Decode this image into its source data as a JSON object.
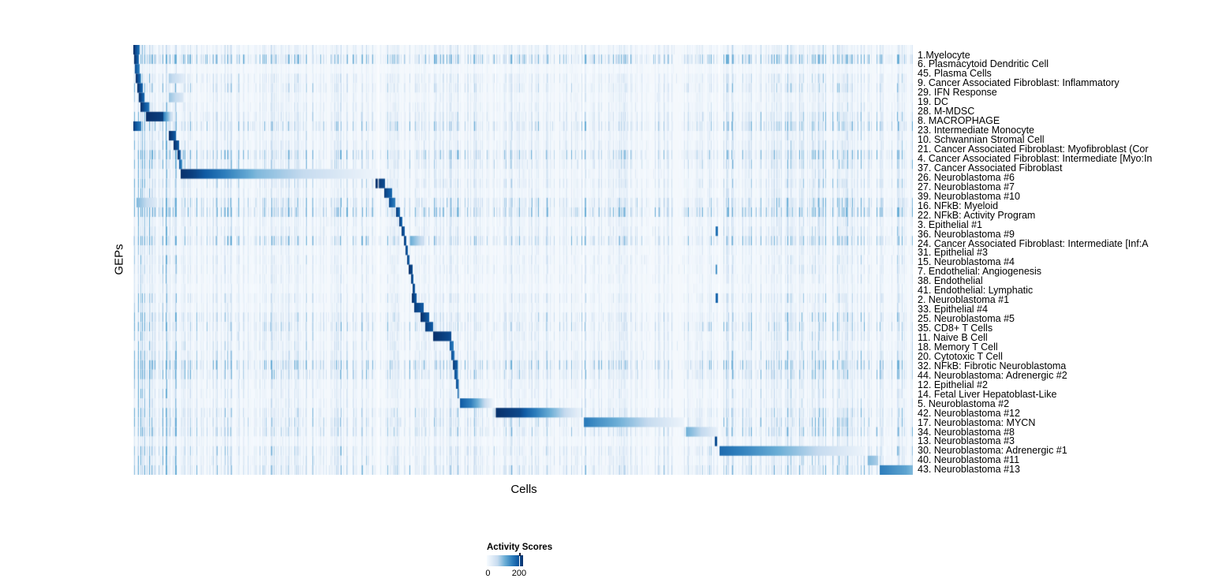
{
  "page": {
    "background": "#ffffff"
  },
  "chart_data": {
    "type": "heatmap",
    "title": "",
    "xlabel": "Cells",
    "ylabel": "GEPs",
    "legend": {
      "title": "Activity Scores",
      "ticks": [
        {
          "label": "0",
          "pos": 0.03
        },
        {
          "label": "200",
          "pos": 0.89
        }
      ],
      "value_range": [
        0,
        225
      ]
    },
    "colormap": {
      "name": "white-to-dark-blue",
      "stops": [
        [
          0.0,
          "#f7fbff"
        ],
        [
          0.12,
          "#e4eef8"
        ],
        [
          0.3,
          "#c6dbef"
        ],
        [
          0.5,
          "#6baed6"
        ],
        [
          0.7,
          "#2e7ebc"
        ],
        [
          0.85,
          "#105ba4"
        ],
        [
          1.0,
          "#08306b"
        ]
      ]
    },
    "background": "#f4f8fc",
    "column_gaps": [
      0.314,
      0.418,
      0.464,
      0.577,
      0.708,
      0.751,
      0.94,
      0.956
    ],
    "stripe_regions": [
      [
        0.0,
        0.062,
        1.8
      ],
      [
        0.062,
        0.314,
        1.0
      ],
      [
        0.314,
        0.42,
        0.9
      ],
      [
        0.42,
        0.58,
        0.85
      ],
      [
        0.58,
        0.708,
        0.7
      ],
      [
        0.708,
        0.752,
        0.8
      ],
      [
        0.752,
        1.0,
        1.15
      ]
    ],
    "rows": [
      {
        "label": "1.Myelocyte",
        "stripe": 0.3,
        "segments": [
          [
            0.0,
            0.008,
            1.0,
            0.75
          ]
        ]
      },
      {
        "label": "6. Plasmacytoid Dendritic Cell",
        "stripe": 0.85,
        "segments": [
          [
            0.001,
            0.007,
            1.0,
            0.8
          ]
        ]
      },
      {
        "label": "45. Plasma Cells",
        "stripe": 0.15,
        "segments": [
          [
            0.002,
            0.008,
            0.9,
            0.7
          ]
        ]
      },
      {
        "label": "9. Cancer Associated Fibroblast: Inflammatory",
        "stripe": 0.35,
        "segments": [
          [
            0.003,
            0.009,
            1.0,
            0.8
          ],
          [
            0.046,
            0.064,
            0.35,
            0.15
          ]
        ]
      },
      {
        "label": "29. IFN Response",
        "stripe": 0.4,
        "segments": [
          [
            0.005,
            0.012,
            1.0,
            0.8
          ]
        ]
      },
      {
        "label": "19. DC",
        "stripe": 0.25,
        "segments": [
          [
            0.007,
            0.014,
            1.0,
            0.8
          ],
          [
            0.046,
            0.064,
            0.4,
            0.2
          ]
        ]
      },
      {
        "label": "28. M-MDSC",
        "stripe": 0.3,
        "segments": [
          [
            0.009,
            0.02,
            1.0,
            0.75
          ]
        ]
      },
      {
        "label": "8. MACROPHAGE",
        "stripe": 0.4,
        "segments": [
          [
            0.016,
            0.038,
            1.0,
            0.95
          ],
          [
            0.038,
            0.052,
            0.7,
            0.15
          ]
        ]
      },
      {
        "label": "23. Intermediate Monocyte",
        "stripe": 0.6,
        "segments": [
          [
            0.0,
            0.01,
            0.95,
            0.7
          ]
        ]
      },
      {
        "label": "10. Schwannian Stromal Cell",
        "stripe": 0.3,
        "segments": [
          [
            0.0455,
            0.0545,
            1.0,
            0.85
          ]
        ]
      },
      {
        "label": "21. Cancer Associated Fibroblast: Myofibroblast (Cor",
        "stripe": 0.35,
        "segments": [
          [
            0.052,
            0.0585,
            1.0,
            0.85
          ]
        ]
      },
      {
        "label": "4. Cancer Associated Fibroblast: Intermediate [Myo:In",
        "stripe": 0.65,
        "segments": [
          [
            0.0565,
            0.0605,
            1.0,
            0.85
          ]
        ]
      },
      {
        "label": "37. Cancer Associated Fibroblast",
        "stripe": 0.45,
        "segments": [
          [
            0.059,
            0.0625,
            0.85,
            0.6
          ]
        ]
      },
      {
        "label": "26. Neuroblastoma #6",
        "stripe": 0.3,
        "segments": [
          [
            0.061,
            0.075,
            1.0,
            0.95
          ],
          [
            0.075,
            0.16,
            0.95,
            0.45
          ],
          [
            0.16,
            0.314,
            0.45,
            0.05
          ]
        ]
      },
      {
        "label": "27. Neuroblastoma #7",
        "stripe": 0.4,
        "segments": [
          [
            0.311,
            0.323,
            1.0,
            0.9
          ]
        ]
      },
      {
        "label": "39. Neuroblastoma #10",
        "stripe": 0.3,
        "segments": [
          [
            0.322,
            0.332,
            0.95,
            0.8
          ]
        ]
      },
      {
        "label": "16. NFkB: Myeloid",
        "stripe": 0.6,
        "segments": [
          [
            0.328,
            0.336,
            0.9,
            0.7
          ],
          [
            0.004,
            0.03,
            0.45,
            0.15
          ]
        ]
      },
      {
        "label": "22. NFkB: Activity Program",
        "stripe": 0.8,
        "segments": [
          [
            0.337,
            0.342,
            0.95,
            0.8
          ]
        ]
      },
      {
        "label": "3. Epithelial #1",
        "stripe": 0.3,
        "segments": [
          [
            0.341,
            0.345,
            0.95,
            0.8
          ]
        ]
      },
      {
        "label": "36. Neuroblastoma #9",
        "stripe": 0.35,
        "segments": [
          [
            0.344,
            0.348,
            0.95,
            0.85
          ],
          [
            0.747,
            0.75,
            0.75,
            0.75
          ]
        ]
      },
      {
        "label": "24. Cancer Associated Fibroblast: Intermediate [Inf:A",
        "stripe": 0.6,
        "segments": [
          [
            0.347,
            0.35,
            0.95,
            0.85
          ],
          [
            0.355,
            0.372,
            0.5,
            0.25
          ]
        ]
      },
      {
        "label": "31. Epithelial #3",
        "stripe": 0.25,
        "segments": [
          [
            0.349,
            0.352,
            0.95,
            0.8
          ]
        ]
      },
      {
        "label": "15. Neuroblastoma #4",
        "stripe": 0.3,
        "segments": [
          [
            0.351,
            0.354,
            0.95,
            0.8
          ]
        ]
      },
      {
        "label": "7. Endothelial: Angiogenesis",
        "stripe": 0.3,
        "segments": [
          [
            0.353,
            0.358,
            1.0,
            0.9
          ],
          [
            0.747,
            0.749,
            0.6,
            0.6
          ]
        ]
      },
      {
        "label": "38. Endothelial",
        "stripe": 0.25,
        "segments": [
          [
            0.356,
            0.359,
            0.95,
            0.85
          ]
        ]
      },
      {
        "label": "41. Endothelial: Lymphatic",
        "stripe": 0.2,
        "segments": [
          [
            0.358,
            0.361,
            0.95,
            0.85
          ]
        ]
      },
      {
        "label": "2. Neuroblastoma #1",
        "stripe": 0.35,
        "segments": [
          [
            0.357,
            0.363,
            1.0,
            0.85
          ],
          [
            0.747,
            0.75,
            0.8,
            0.8
          ]
        ]
      },
      {
        "label": "33. Epithelial #4",
        "stripe": 0.25,
        "segments": [
          [
            0.36,
            0.372,
            0.95,
            0.85
          ]
        ]
      },
      {
        "label": "25. Neuroblastoma #5",
        "stripe": 0.45,
        "segments": [
          [
            0.368,
            0.38,
            1.0,
            0.85
          ]
        ]
      },
      {
        "label": "35. CD8+ T Cells",
        "stripe": 0.5,
        "segments": [
          [
            0.374,
            0.385,
            0.95,
            0.85
          ]
        ]
      },
      {
        "label": "11. Naive B Cell",
        "stripe": 0.35,
        "segments": [
          [
            0.385,
            0.408,
            1.0,
            0.9
          ]
        ]
      },
      {
        "label": "18. Memory T Cell",
        "stripe": 0.35,
        "segments": [
          [
            0.406,
            0.411,
            0.85,
            0.7
          ]
        ]
      },
      {
        "label": "20. Cytotoxic T Cell",
        "stripe": 0.4,
        "segments": [
          [
            0.408,
            0.412,
            0.9,
            0.75
          ]
        ]
      },
      {
        "label": "32. NFkB: Fibrotic Neuroblastoma",
        "stripe": 0.7,
        "segments": [
          [
            0.41,
            0.416,
            0.95,
            0.85
          ]
        ]
      },
      {
        "label": "44. Neuroblastoma: Adrenergic #2",
        "stripe": 0.55,
        "segments": [
          [
            0.412,
            0.416,
            0.9,
            0.8
          ]
        ]
      },
      {
        "label": "12. Epithelial #2",
        "stripe": 0.3,
        "segments": [
          [
            0.414,
            0.418,
            0.9,
            0.75
          ]
        ]
      },
      {
        "label": "14. Fetal Liver Hepatoblast-Like",
        "stripe": 0.3,
        "segments": [
          [
            0.416,
            0.419,
            0.8,
            0.65
          ]
        ]
      },
      {
        "label": "5. Neuroblastoma #2",
        "stripe": 0.3,
        "segments": [
          [
            0.419,
            0.432,
            0.85,
            0.7
          ],
          [
            0.432,
            0.463,
            0.7,
            0.05
          ]
        ]
      },
      {
        "label": "42. Neuroblastoma #12",
        "stripe": 0.45,
        "segments": [
          [
            0.465,
            0.495,
            1.0,
            0.92
          ],
          [
            0.495,
            0.575,
            0.92,
            0.08
          ]
        ]
      },
      {
        "label": "17. Neuroblastoma: MYCN",
        "stripe": 0.5,
        "segments": [
          [
            0.578,
            0.6,
            0.72,
            0.6
          ],
          [
            0.6,
            0.71,
            0.6,
            0.05
          ]
        ]
      },
      {
        "label": "34. Neuroblastoma #8",
        "stripe": 0.5,
        "segments": [
          [
            0.708,
            0.73,
            0.5,
            0.3
          ],
          [
            0.73,
            0.752,
            0.3,
            0.07
          ]
        ]
      },
      {
        "label": "13. Neuroblastoma #3",
        "stripe": 0.25,
        "segments": [
          [
            0.746,
            0.749,
            0.9,
            0.9
          ]
        ]
      },
      {
        "label": "30. Neuroblastoma: Adrenergic #1",
        "stripe": 0.45,
        "segments": [
          [
            0.752,
            0.78,
            0.78,
            0.68
          ],
          [
            0.78,
            0.94,
            0.68,
            0.06
          ]
        ]
      },
      {
        "label": "40. Neuroblastoma #11",
        "stripe": 0.4,
        "segments": [
          [
            0.942,
            0.956,
            0.45,
            0.35
          ]
        ]
      },
      {
        "label": "43. Neuroblastoma #13",
        "stripe": 0.5,
        "segments": [
          [
            0.957,
            0.99,
            0.7,
            0.55
          ],
          [
            0.99,
            1.0,
            0.55,
            0.45
          ]
        ]
      }
    ]
  }
}
